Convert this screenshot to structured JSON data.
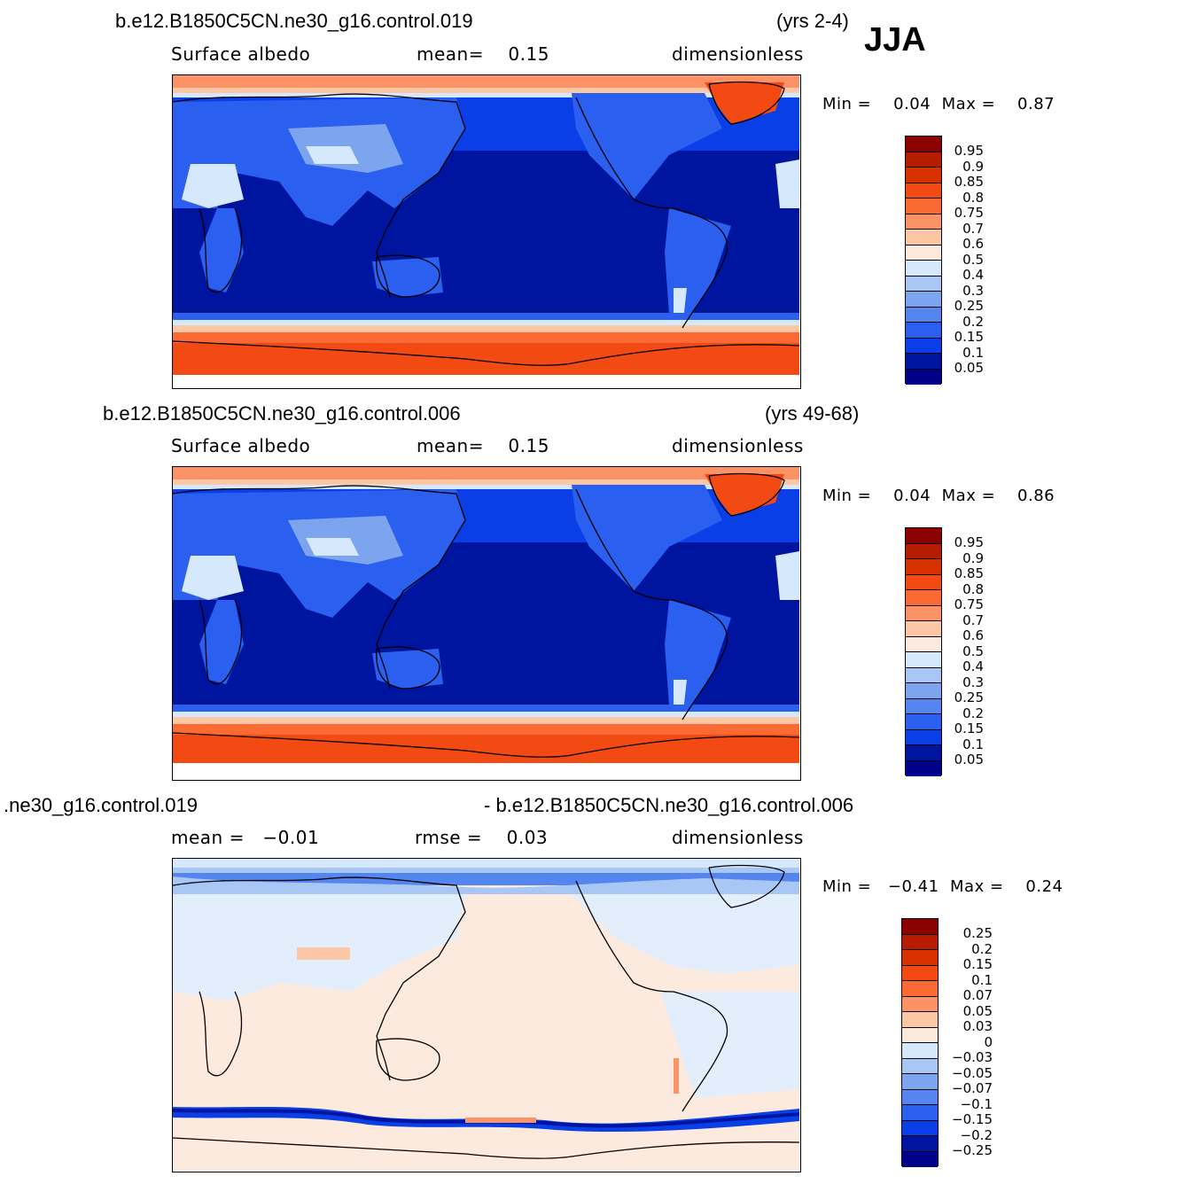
{
  "season": "JJA",
  "panels": [
    {
      "case": "b.e12.B1850C5CN.ne30_g16.control.019",
      "years": "(yrs 2-4)",
      "variable": "Surface albedo",
      "stat": "mean=    0.15",
      "units": "dimensionless",
      "minmax": "Min =    0.04  Max =    0.87",
      "levels": [
        "0.95",
        "0.9",
        "0.85",
        "0.8",
        "0.75",
        "0.7",
        "0.6",
        "0.5",
        "0.4",
        "0.3",
        "0.25",
        "0.2",
        "0.15",
        "0.1",
        "0.05"
      ]
    },
    {
      "case": "b.e12.B1850C5CN.ne30_g16.control.006",
      "years": "(yrs 49-68)",
      "variable": "Surface albedo",
      "stat": "mean=    0.15",
      "units": "dimensionless",
      "minmax": "Min =    0.04  Max =    0.86",
      "levels": [
        "0.95",
        "0.9",
        "0.85",
        "0.8",
        "0.75",
        "0.7",
        "0.6",
        "0.5",
        "0.4",
        "0.3",
        "0.25",
        "0.2",
        "0.15",
        "0.1",
        "0.05"
      ]
    },
    {
      "case_left": ".ne30_g16.control.019",
      "case_right": "- b.e12.B1850C5CN.ne30_g16.control.006",
      "stat": "mean =   −0.01",
      "rmse": "rmse =    0.03",
      "units": "dimensionless",
      "minmax": "Min =   −0.41  Max =    0.24",
      "levels": [
        "0.25",
        "0.2",
        "0.15",
        "0.1",
        "0.07",
        "0.05",
        "0.03",
        "0",
        "−0.03",
        "−0.05",
        "−0.07",
        "−0.1",
        "−0.15",
        "−0.2",
        "−0.25"
      ]
    }
  ],
  "colors": {
    "abs_scale": [
      "#8b0000",
      "#b61d00",
      "#d83100",
      "#f24a12",
      "#fb6a33",
      "#fc9367",
      "#fdc7a6",
      "#fdeadf",
      "#d6e8fb",
      "#a8c7f4",
      "#7da5ef",
      "#5585ee",
      "#2a5ff0",
      "#0a3ee6",
      "#00159f",
      "#00008b"
    ],
    "diff_scale": [
      "#8b0000",
      "#b61d00",
      "#d83100",
      "#f24a12",
      "#fb6a33",
      "#fc9367",
      "#fdc7a6",
      "#fdeadf",
      "#d6e8fb",
      "#a8c7f4",
      "#7da5ef",
      "#5585ee",
      "#2a5ff0",
      "#0a3ee6",
      "#00159f",
      "#00008b"
    ],
    "ocean_deep": "#03168f",
    "diff_bg": "#e8f0fb"
  }
}
